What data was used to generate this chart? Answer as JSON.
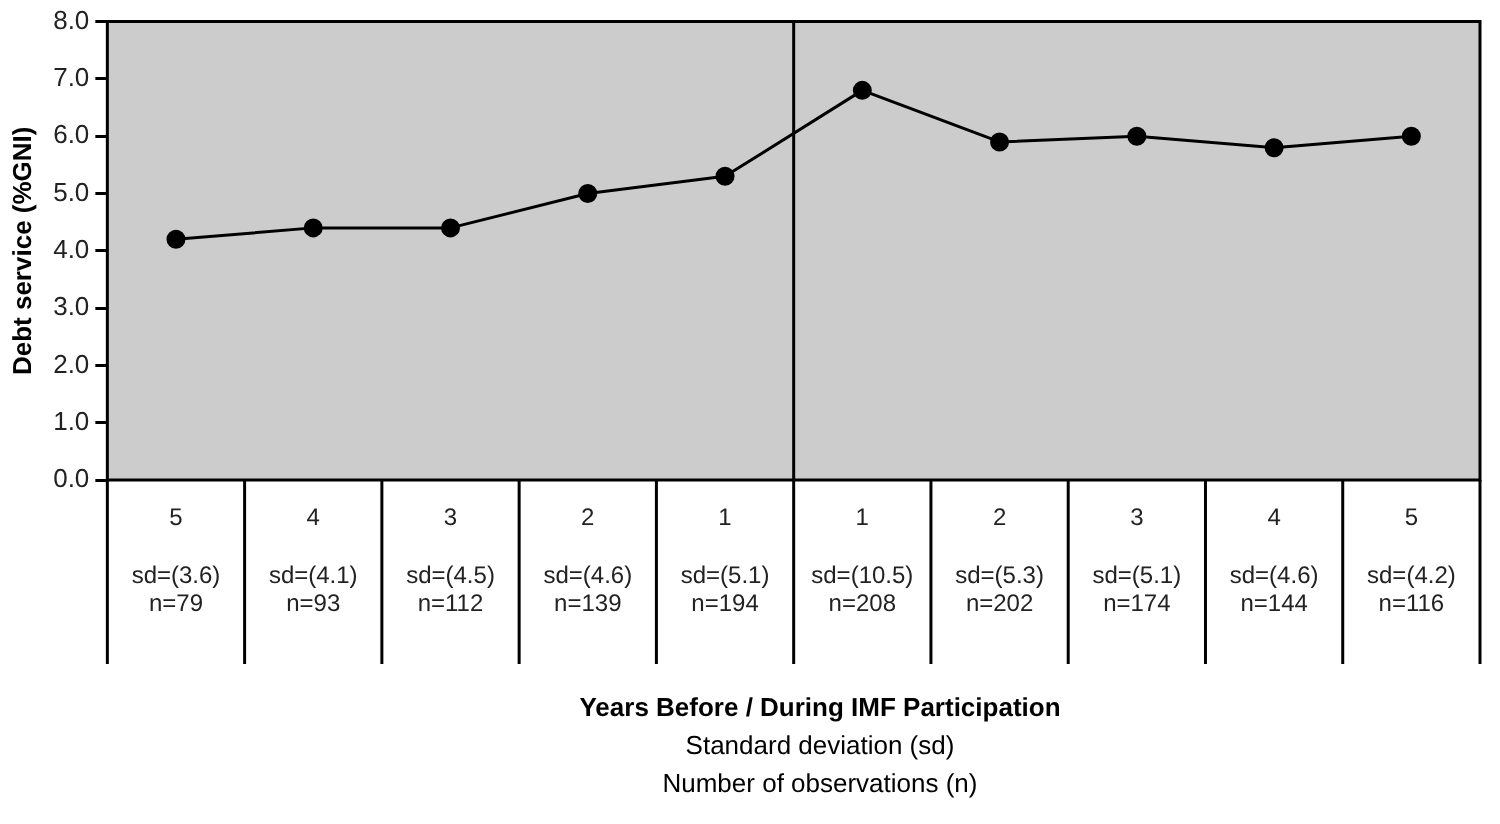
{
  "chart_data": {
    "type": "line",
    "ylabel": "Debt service (%GNI)",
    "annotations": [
      "Years Before / During IMF Participation",
      "Standard deviation (sd)",
      "Number of observations (n)"
    ],
    "categories": [
      "5\n\nsd=(3.6)\nn=79",
      "4\n\nsd=(4.1)\nn=93",
      "3\n\nsd=(4.5)\nn=112",
      "2\n\nsd=(4.6)\nn=139",
      "1\n\nsd=(5.1)\nn=194",
      "1\n\nsd=(10.5)\nn=208",
      "2\n\nsd=(5.3)\nn=202",
      "3\n\nsd=(5.1)\nn=174",
      "4\n\nsd=(4.6)\nn=144",
      "5\n\nsd=(4.2)\nn=116"
    ],
    "values": [
      4.2,
      4.4,
      4.4,
      5.0,
      5.3,
      6.8,
      5.9,
      6.0,
      5.8,
      6.0
    ],
    "color": "#000000",
    "marker": "circle",
    "line_style": "solid",
    "ylim": [
      0,
      8
    ],
    "yticks": [
      {
        "value": 0,
        "label": "0.0"
      },
      {
        "value": 1,
        "label": "1.0"
      },
      {
        "value": 2,
        "label": "2.0"
      },
      {
        "value": 3,
        "label": "3.0"
      },
      {
        "value": 4,
        "label": "4.0"
      },
      {
        "value": 5,
        "label": "5.0"
      },
      {
        "value": 6,
        "label": "6.0"
      },
      {
        "value": 7,
        "label": "7.0"
      },
      {
        "value": 8,
        "label": "8.0"
      }
    ],
    "grid": false,
    "legend": false
  }
}
